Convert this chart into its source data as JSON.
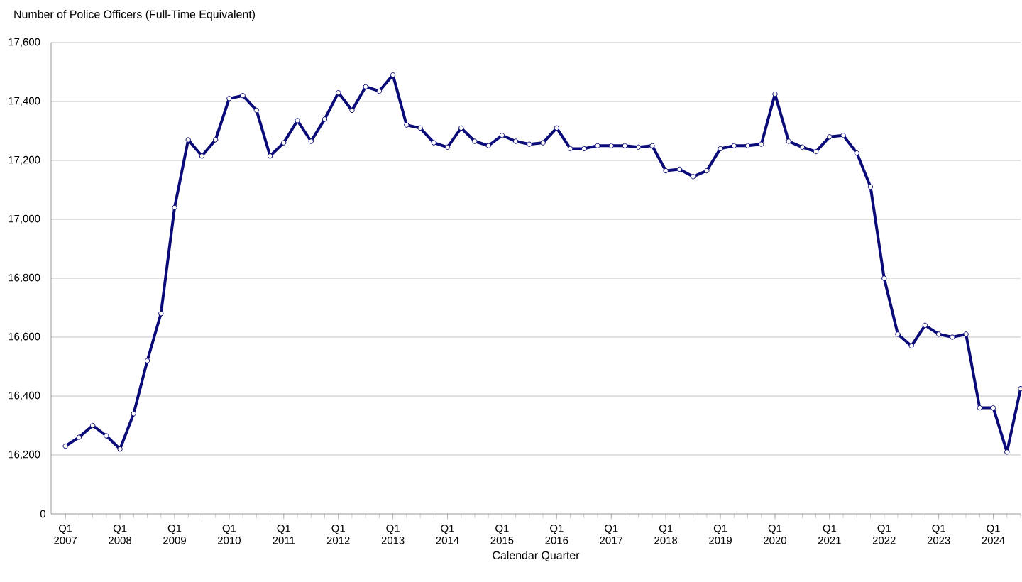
{
  "chart_data": {
    "type": "line",
    "ylabel": "Number of Police Officers (Full-Time Equivalent)",
    "xlabel": "Calendar Quarter",
    "categories": [
      "Q1 2007",
      null,
      null,
      null,
      "Q1 2008",
      null,
      null,
      null,
      "Q1 2009",
      null,
      null,
      null,
      "Q1 2010",
      null,
      null,
      null,
      "Q1 2011",
      null,
      null,
      null,
      "Q1 2012",
      null,
      null,
      null,
      "Q1 2013",
      null,
      null,
      null,
      "Q1 2014",
      null,
      null,
      null,
      "Q1 2015",
      null,
      null,
      null,
      "Q1 2016",
      null,
      null,
      null,
      "Q1 2017",
      null,
      null,
      null,
      "Q1 2018",
      null,
      null,
      null,
      "Q1 2019",
      null,
      null,
      null,
      "Q1 2020",
      null,
      null,
      null,
      "Q1 2021",
      null,
      null,
      null,
      "Q1 2022",
      null,
      null,
      null,
      "Q1 2023",
      null,
      null,
      null,
      "Q1 2024",
      null,
      null
    ],
    "series": [
      {
        "color": "#0a0a78",
        "values": [
          16230,
          16260,
          16300,
          16265,
          16220,
          16340,
          16520,
          16680,
          17040,
          17270,
          17215,
          17270,
          17410,
          17420,
          17370,
          17215,
          17260,
          17335,
          17265,
          17340,
          17430,
          17370,
          17450,
          17435,
          17490,
          17320,
          17310,
          17260,
          17245,
          17310,
          17265,
          17250,
          17285,
          17265,
          17255,
          17260,
          17310,
          17240,
          17240,
          17250,
          17250,
          17250,
          17245,
          17250,
          17165,
          17170,
          17145,
          17165,
          17240,
          17250,
          17250,
          17255,
          17425,
          17265,
          17245,
          17230,
          17280,
          17285,
          17225,
          17110,
          16800,
          16610,
          16570,
          16640,
          16610,
          16600,
          16610,
          16360,
          16360,
          16210,
          16425
        ]
      }
    ],
    "ylim": [
      16000,
      17600
    ],
    "annotations": [
      "0"
    ],
    "yticks": [
      {
        "value": 16200,
        "label": "16,200"
      },
      {
        "value": 16400,
        "label": "16,400"
      },
      {
        "value": 16600,
        "label": "16,600"
      },
      {
        "value": 16800,
        "label": "16,800"
      },
      {
        "value": 17000,
        "label": "17,000"
      },
      {
        "value": 17200,
        "label": "17,200"
      },
      {
        "value": 17400,
        "label": "17,400"
      },
      {
        "value": 17600,
        "label": "17,600"
      }
    ],
    "grid": "y",
    "marker": "circle",
    "line_style": "solid"
  }
}
